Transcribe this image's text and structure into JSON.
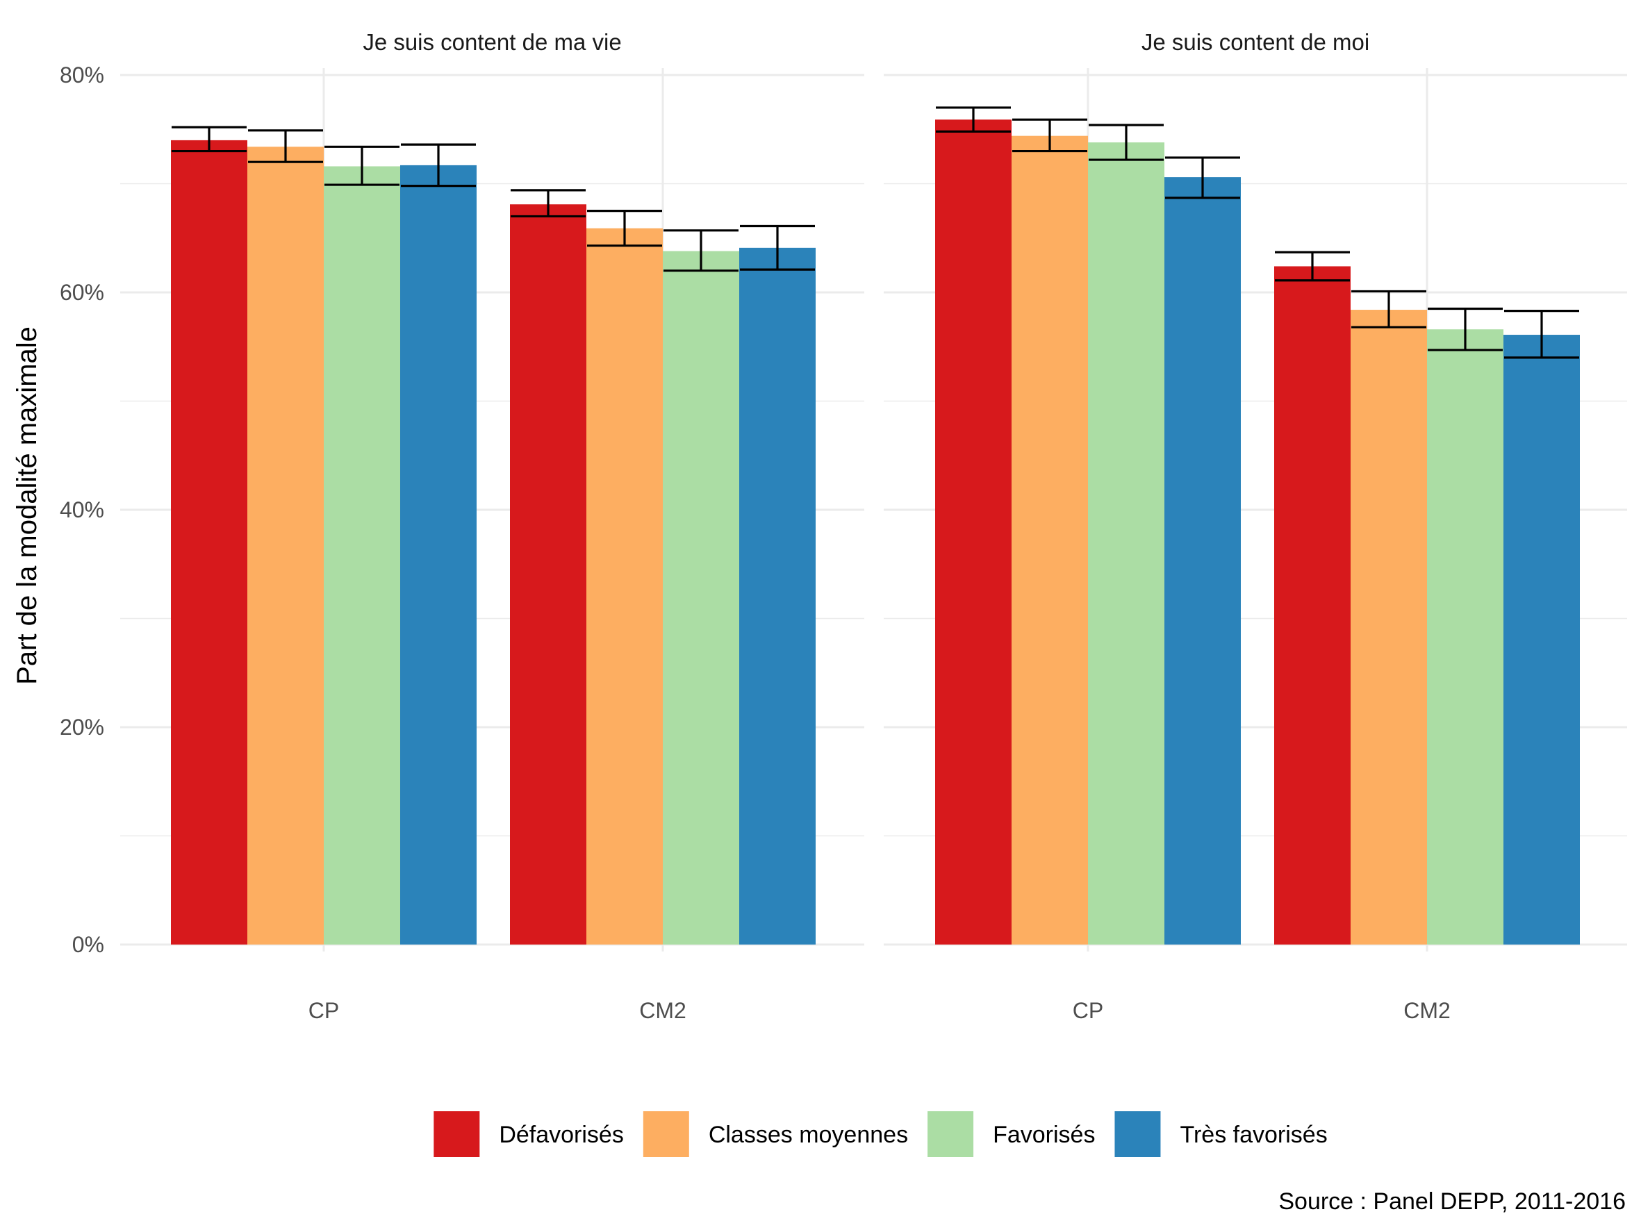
{
  "chart_data": {
    "type": "bar",
    "ylabel": "Part de la modalité maximale",
    "xlabel": "",
    "ylim": [
      0,
      80
    ],
    "y_ticks": [
      "0%",
      "20%",
      "40%",
      "60%",
      "80%"
    ],
    "y_tick_values": [
      0,
      20,
      40,
      60,
      80
    ],
    "categories": [
      "CP",
      "CM2"
    ],
    "caption": "Source : Panel DEPP, 2011-2016",
    "legend_position": "bottom",
    "grid": true,
    "series_meta": [
      {
        "name": "Défavorisés",
        "color": "#d7191c"
      },
      {
        "name": "Classes moyennes",
        "color": "#fdae61"
      },
      {
        "name": "Favorisés",
        "color": "#abdda4"
      },
      {
        "name": "Très favorisés",
        "color": "#2b83ba"
      }
    ],
    "panels": [
      {
        "title": "Je suis content de ma vie",
        "groups": [
          {
            "category": "CP",
            "values": [
              74.0,
              73.4,
              71.6,
              71.7
            ],
            "err_low": [
              73.0,
              72.0,
              69.9,
              69.8
            ],
            "err_high": [
              75.2,
              74.9,
              73.4,
              73.6
            ]
          },
          {
            "category": "CM2",
            "values": [
              68.1,
              65.9,
              63.8,
              64.1
            ],
            "err_low": [
              67.0,
              64.3,
              62.0,
              62.1
            ],
            "err_high": [
              69.4,
              67.5,
              65.7,
              66.1
            ]
          }
        ]
      },
      {
        "title": "Je suis content de moi",
        "groups": [
          {
            "category": "CP",
            "values": [
              75.9,
              74.4,
              73.8,
              70.6
            ],
            "err_low": [
              74.8,
              73.0,
              72.2,
              68.7
            ],
            "err_high": [
              77.0,
              75.9,
              75.4,
              72.4
            ]
          },
          {
            "category": "CM2",
            "values": [
              62.4,
              58.4,
              56.6,
              56.1
            ],
            "err_low": [
              61.1,
              56.8,
              54.7,
              54.0
            ],
            "err_high": [
              63.7,
              60.1,
              58.5,
              58.3
            ]
          }
        ]
      }
    ]
  }
}
